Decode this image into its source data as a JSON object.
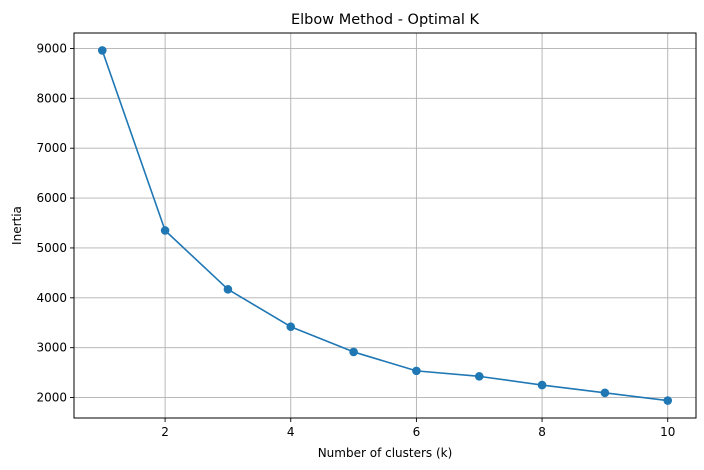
{
  "chart_data": {
    "type": "line",
    "title": "Elbow Method - Optimal K",
    "xlabel": "Number of clusters (k)",
    "ylabel": "Inertia",
    "x": [
      1,
      2,
      3,
      4,
      5,
      6,
      7,
      8,
      9,
      10
    ],
    "series": [
      {
        "values": [
          8960,
          5350,
          4170,
          3420,
          2915,
          2535,
          2425,
          2250,
          2095,
          1940
        ],
        "color": "#1f77b4",
        "marker": "circle"
      }
    ],
    "xlim": [
      0.55,
      10.45
    ],
    "ylim": [
      1590,
      9310
    ],
    "xticks": [
      2,
      4,
      6,
      8,
      10
    ],
    "yticks": [
      2000,
      3000,
      4000,
      5000,
      6000,
      7000,
      8000,
      9000
    ],
    "grid": true
  }
}
